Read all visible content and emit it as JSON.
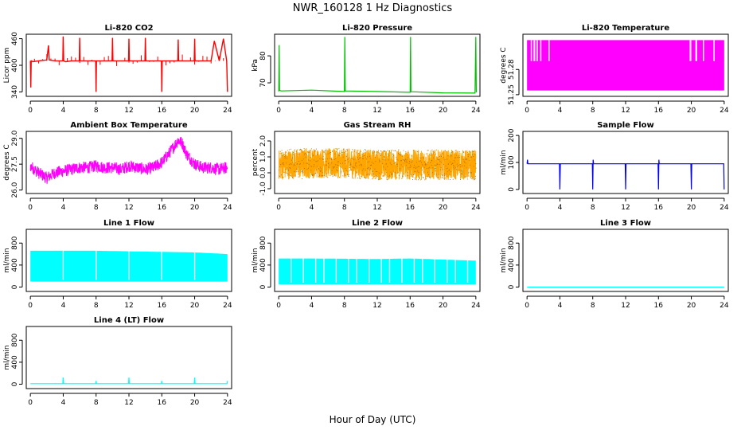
{
  "page": {
    "title": "NWR_160128  1 Hz Diagnostics",
    "xlabel": "Hour of Day (UTC)"
  },
  "chart_data": [
    {
      "id": "li820-co2",
      "type": "line",
      "title": "Li-820 CO2",
      "ylabel": "Licor ppm",
      "color": "#ff0000",
      "xlim": [
        -0.5,
        24.5
      ],
      "ylim": [
        330,
        470
      ],
      "xticks": [
        0,
        4,
        8,
        12,
        16,
        20,
        24
      ],
      "yticks": [
        340,
        400,
        460
      ],
      "pattern": "co2",
      "series": [
        {
          "x": [
            0,
            0.05,
            0.1,
            0.15,
            0.3,
            1,
            2,
            2.2,
            2.3,
            3,
            3.95,
            4.0,
            4.05,
            4.3,
            5,
            5.95,
            6.0,
            6.05,
            7,
            7.95,
            8.0,
            8.05,
            9,
            9.95,
            10.0,
            10.05,
            11,
            11.95,
            12.0,
            12.05,
            13,
            13.95,
            14.0,
            14.05,
            15,
            15.95,
            16.0,
            16.05,
            17,
            17.95,
            18.0,
            18.05,
            19,
            19.95,
            20.0,
            20.05,
            21,
            22,
            22.4,
            23,
            23.5,
            23.9,
            24
          ],
          "y": [
            410,
            350,
            410,
            410,
            408,
            410,
            412,
            445,
            412,
            410,
            410,
            465,
            410,
            408,
            410,
            410,
            462,
            410,
            410,
            410,
            340,
            410,
            410,
            410,
            462,
            410,
            410,
            410,
            460,
            410,
            410,
            410,
            462,
            410,
            410,
            410,
            340,
            410,
            410,
            410,
            458,
            410,
            410,
            410,
            460,
            410,
            410,
            410,
            455,
            410,
            460,
            410,
            340
          ]
        }
      ]
    },
    {
      "id": "li820-pressure",
      "type": "line",
      "title": "Li-820 Pressure",
      "ylabel": "kPa",
      "color": "#00c000",
      "xlim": [
        -0.5,
        24.5
      ],
      "ylim": [
        65,
        88
      ],
      "xticks": [
        0,
        4,
        8,
        12,
        16,
        20,
        24
      ],
      "yticks": [
        70,
        80
      ],
      "pattern": "line",
      "series": [
        {
          "x": [
            0,
            0.05,
            0.1,
            0.3,
            4,
            8,
            8.05,
            8.1,
            12,
            16,
            16.05,
            16.1,
            20,
            23.9,
            24.0,
            24.05
          ],
          "y": [
            66.8,
            84,
            67.2,
            67,
            67.3,
            66.8,
            87,
            67.0,
            66.8,
            66.5,
            87,
            66.7,
            66.3,
            66.2,
            87,
            66.5
          ]
        }
      ]
    },
    {
      "id": "li820-temperature",
      "type": "line",
      "title": "Li-820 Temperature",
      "ylabel": "degrees C",
      "color": "#ff00ff",
      "xlim": [
        -0.5,
        24.5
      ],
      "ylim": [
        51.248,
        51.322
      ],
      "xticks": [
        0,
        4,
        8,
        12,
        16,
        20,
        24
      ],
      "yticks": [
        51.25,
        51.28
      ],
      "pattern": "temperature-quantized",
      "series": [
        {
          "x": [
            0,
            0.5,
            1.2,
            1.5,
            2,
            2.5,
            3.5,
            4,
            5.5,
            6,
            20,
            20.5,
            21,
            22,
            23,
            24
          ],
          "y": [
            51.29,
            51.3,
            51.29,
            51.31,
            51.3,
            51.31,
            51.3,
            51.31,
            51.3,
            51.31,
            51.31,
            51.3,
            51.31,
            51.3,
            51.31,
            51.31
          ]
        }
      ]
    },
    {
      "id": "ambient-box-temperature",
      "type": "line",
      "title": "Ambient Box Temperature",
      "ylabel": "degrees C",
      "color": "#ff00ff",
      "xlim": [
        -0.5,
        24.5
      ],
      "ylim": [
        25.8,
        29.4
      ],
      "xticks": [
        0,
        4,
        8,
        12,
        16,
        20,
        24
      ],
      "yticks": [
        26.0,
        27.5,
        29.0
      ],
      "pattern": "noisy",
      "noise": 0.35,
      "series": [
        {
          "x": [
            0,
            1,
            2,
            3,
            4,
            5,
            6,
            7,
            8,
            9,
            10,
            11,
            12,
            13,
            14,
            15,
            16,
            17,
            18,
            18.5,
            19,
            20,
            21,
            22,
            23,
            24
          ],
          "y": [
            27.4,
            27.0,
            26.7,
            27.0,
            27.1,
            27.2,
            27.3,
            27.3,
            27.4,
            27.3,
            27.3,
            27.2,
            27.4,
            27.3,
            27.2,
            27.3,
            27.6,
            28.2,
            28.9,
            28.7,
            28.1,
            27.5,
            27.3,
            27.3,
            27.2,
            27.3
          ]
        }
      ]
    },
    {
      "id": "gas-stream-rh",
      "type": "line",
      "title": "Gas Stream RH",
      "ylabel": "percent",
      "color": "#ffa500",
      "color2": "#aa6600",
      "xlim": [
        -0.5,
        24.5
      ],
      "ylim": [
        -1.3,
        2.6
      ],
      "xticks": [
        0,
        4,
        8,
        12,
        16,
        20,
        24
      ],
      "yticks": [
        -1.0,
        0.0,
        1.0,
        2.0
      ],
      "pattern": "noisy-points",
      "noise": 0.95,
      "series": [
        {
          "x": [
            0,
            4,
            8,
            12,
            16,
            20,
            24
          ],
          "y": [
            0.5,
            0.6,
            0.6,
            0.5,
            0.5,
            0.5,
            0.5
          ]
        }
      ]
    },
    {
      "id": "sample-flow",
      "type": "line",
      "title": "Sample Flow",
      "ylabel": "ml/min",
      "color": "#0000ff",
      "xlim": [
        -0.5,
        24.5
      ],
      "ylim": [
        -15,
        215
      ],
      "xticks": [
        0,
        4,
        8,
        12,
        16,
        20,
        24
      ],
      "yticks": [
        0,
        100,
        200
      ],
      "pattern": "line",
      "series": [
        {
          "x": [
            0,
            0.05,
            0.1,
            3.95,
            4.0,
            4.05,
            7.95,
            8.0,
            8.05,
            8.1,
            11.95,
            12.0,
            12.05,
            15.95,
            16.0,
            16.05,
            16.1,
            19.95,
            20.0,
            20.05,
            23.95,
            24.0
          ],
          "y": [
            95,
            110,
            95,
            95,
            0,
            95,
            95,
            0,
            110,
            95,
            95,
            0,
            95,
            95,
            0,
            110,
            95,
            95,
            0,
            95,
            95,
            0
          ]
        }
      ]
    },
    {
      "id": "line1-flow",
      "type": "area",
      "title": "Line 1 Flow",
      "ylabel": "ml/min",
      "color": "#00ffff",
      "xlim": [
        -0.5,
        24.5
      ],
      "ylim": [
        -80,
        1050
      ],
      "xticks": [
        0,
        4,
        8,
        12,
        16,
        20,
        24
      ],
      "yticks": [
        0,
        400,
        800
      ],
      "pattern": "band",
      "low": 100,
      "gaps": [
        4,
        8,
        12,
        16,
        20
      ],
      "series": [
        {
          "x": [
            0,
            4,
            8,
            12,
            16,
            20,
            24
          ],
          "y": [
            660,
            660,
            660,
            650,
            640,
            630,
            600
          ]
        }
      ]
    },
    {
      "id": "line2-flow",
      "type": "area",
      "title": "Line 2 Flow",
      "ylabel": "ml/min",
      "color": "#00ffff",
      "xlim": [
        -0.5,
        24.5
      ],
      "ylim": [
        -80,
        1050
      ],
      "xticks": [
        0,
        4,
        8,
        12,
        16,
        20,
        24
      ],
      "yticks": [
        0,
        400,
        800
      ],
      "pattern": "band",
      "low": 50,
      "gaps": [
        1.5,
        3,
        4.5,
        5.5,
        7,
        8.5,
        9.5,
        11,
        12.5,
        13.5,
        15,
        16.5,
        17.5,
        19,
        20.5,
        21.5,
        23
      ],
      "series": [
        {
          "x": [
            0,
            4,
            8,
            12,
            16,
            20,
            24
          ],
          "y": [
            520,
            520,
            515,
            510,
            520,
            500,
            480
          ]
        }
      ]
    },
    {
      "id": "line3-flow",
      "type": "line",
      "title": "Line 3 Flow",
      "ylabel": "ml/min",
      "color": "#00ffff",
      "xlim": [
        -0.5,
        24.5
      ],
      "ylim": [
        -80,
        1050
      ],
      "xticks": [
        0,
        4,
        8,
        12,
        16,
        20,
        24
      ],
      "yticks": [
        0,
        400,
        800
      ],
      "pattern": "line",
      "series": [
        {
          "x": [
            0,
            24
          ],
          "y": [
            0,
            0
          ]
        }
      ]
    },
    {
      "id": "line4-flow",
      "type": "line",
      "title": "Line 4 (LT) Flow",
      "ylabel": "ml/min",
      "color": "#00ffff",
      "xlim": [
        -0.5,
        24.5
      ],
      "ylim": [
        -80,
        1050
      ],
      "xticks": [
        0,
        4,
        8,
        12,
        16,
        20,
        24
      ],
      "yticks": [
        0,
        400,
        800
      ],
      "pattern": "line",
      "series": [
        {
          "x": [
            0,
            3.95,
            4.0,
            4.05,
            7.95,
            8.0,
            8.05,
            11.95,
            12.0,
            12.05,
            15.95,
            16.0,
            16.05,
            19.95,
            20.0,
            20.05,
            23.95,
            24.0
          ],
          "y": [
            10,
            10,
            120,
            10,
            10,
            60,
            10,
            10,
            120,
            10,
            10,
            60,
            10,
            10,
            120,
            10,
            10,
            60
          ]
        }
      ]
    }
  ]
}
